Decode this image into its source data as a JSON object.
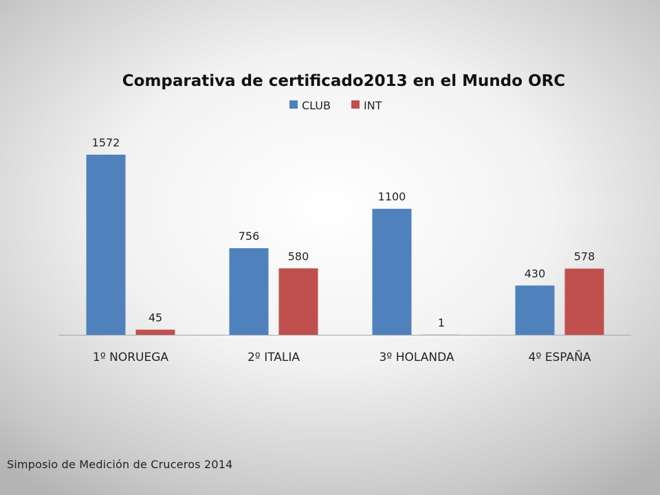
{
  "chart_data": {
    "type": "bar",
    "title": "Comparativa de certificado2013 en el Mundo ORC",
    "categories": [
      "1º NORUEGA",
      "2º ITALIA",
      "3º HOLANDA",
      "4º ESPAÑA"
    ],
    "series": [
      {
        "name": "CLUB",
        "values": [
          1572,
          756,
          1100,
          430
        ],
        "color": "#4f81bd"
      },
      {
        "name": "INT",
        "values": [
          45,
          580,
          1,
          578
        ],
        "color": "#c0504d"
      }
    ],
    "ylim": [
      0,
      1572
    ],
    "grid": false,
    "legend_position": "top",
    "data_labels": true
  },
  "footer": {
    "text": "Simposio de Medición de Cruceros 2014"
  }
}
